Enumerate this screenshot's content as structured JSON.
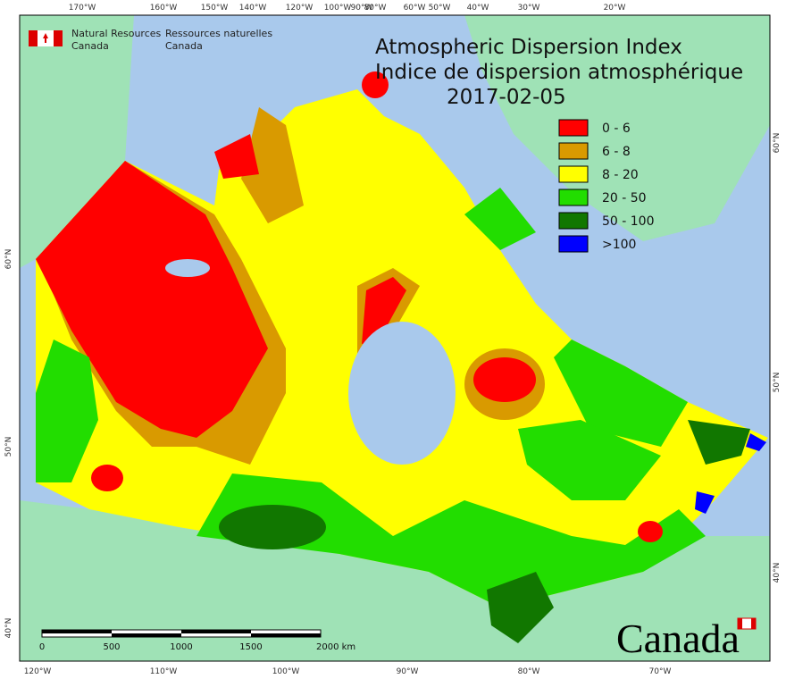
{
  "logo": {
    "english": [
      "Natural Resources",
      "Canada"
    ],
    "french": [
      "Ressources naturelles",
      "Canada"
    ]
  },
  "title": [
    "Atmospheric Dispersion Index",
    "Indice de dispersion atmosphérique"
  ],
  "date": "2017-02-05",
  "legend": [
    {
      "label": "0 - 6",
      "color": "#ff0000"
    },
    {
      "label": "6 - 8",
      "color": "#d99a00"
    },
    {
      "label": "8 - 20",
      "color": "#ffff00"
    },
    {
      "label": "20 - 50",
      "color": "#22dd00"
    },
    {
      "label": "50 - 100",
      "color": "#117700"
    },
    {
      "label": ">100",
      "color": "#0000ff"
    }
  ],
  "graticule": {
    "top": [
      "170°W",
      "160°W",
      "150°W",
      "140°W",
      "120°W",
      "100°W",
      "90°W",
      "80°W",
      "60°W",
      "50°W",
      "40°W",
      "30°W",
      "20°W"
    ],
    "bottom": [
      "120°W",
      "110°W",
      "100°W",
      "90°W",
      "80°W",
      "70°W"
    ],
    "left": [
      "60°N",
      "50°N",
      "40°N"
    ],
    "right": [
      "60°N",
      "50°N",
      "40°N"
    ]
  },
  "scale_bar": [
    "0",
    "500",
    "1000",
    "1500",
    "2000 km"
  ],
  "wordmark": "Canada"
}
